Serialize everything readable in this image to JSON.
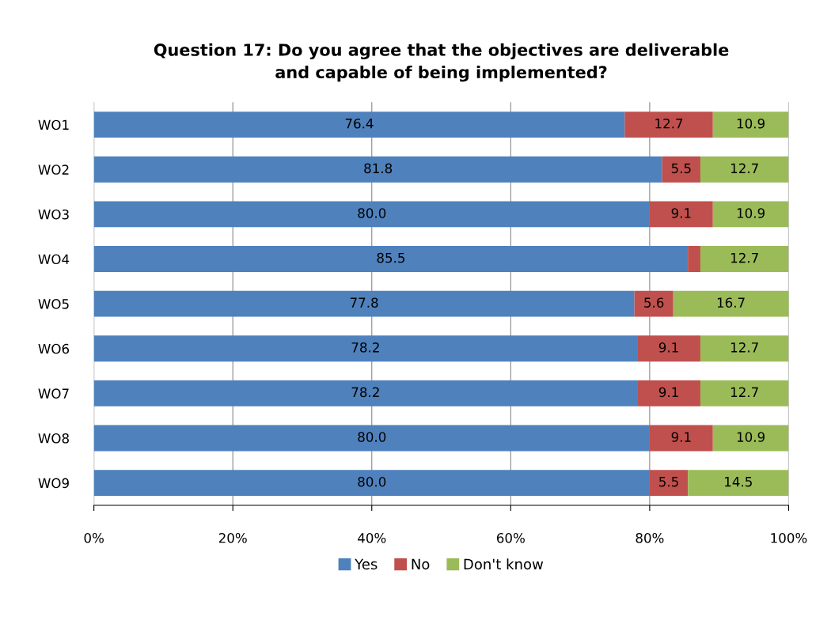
{
  "chart_data": {
    "type": "bar",
    "orientation": "horizontal",
    "stacked": true,
    "title": "Question 17: Do you agree that the objectives are deliverable\nand capable of being implemented?",
    "categories": [
      "WO1",
      "WO2",
      "WO3",
      "WO4",
      "WO5",
      "WO6",
      "WO7",
      "WO8",
      "WO9"
    ],
    "series": [
      {
        "name": "Yes",
        "color": "#4f81bd",
        "values": [
          76.4,
          81.8,
          80.0,
          85.5,
          77.8,
          78.2,
          78.2,
          80.0,
          80.0
        ],
        "value_labels": [
          "76.4",
          "81.8",
          "80.0",
          "85.5",
          "77.8",
          "78.2",
          "78.2",
          "80.0",
          "80.0"
        ]
      },
      {
        "name": "No",
        "color": "#c0504d",
        "values": [
          12.7,
          5.5,
          9.1,
          1.8,
          5.6,
          9.1,
          9.1,
          9.1,
          5.5
        ],
        "value_labels": [
          "12.7",
          "5.5",
          "9.1",
          null,
          "5.6",
          "9.1",
          "9.1",
          "9.1",
          "5.5"
        ]
      },
      {
        "name": "Don't know",
        "color": "#9bbb59",
        "values": [
          10.9,
          12.7,
          10.9,
          12.7,
          16.7,
          12.7,
          12.7,
          10.9,
          14.5
        ],
        "value_labels": [
          "10.9",
          "12.7",
          "10.9",
          "12.7",
          "16.7",
          "12.7",
          "12.7",
          "10.9",
          "14.5"
        ]
      }
    ],
    "xlim": [
      0,
      100
    ],
    "xticks": [
      {
        "value": 0,
        "label": "0%"
      },
      {
        "value": 20,
        "label": "20%"
      },
      {
        "value": 40,
        "label": "40%"
      },
      {
        "value": 60,
        "label": "60%"
      },
      {
        "value": 80,
        "label": "80%"
      },
      {
        "value": 100,
        "label": "100%"
      }
    ],
    "grid": "x",
    "legend": "bottom"
  }
}
